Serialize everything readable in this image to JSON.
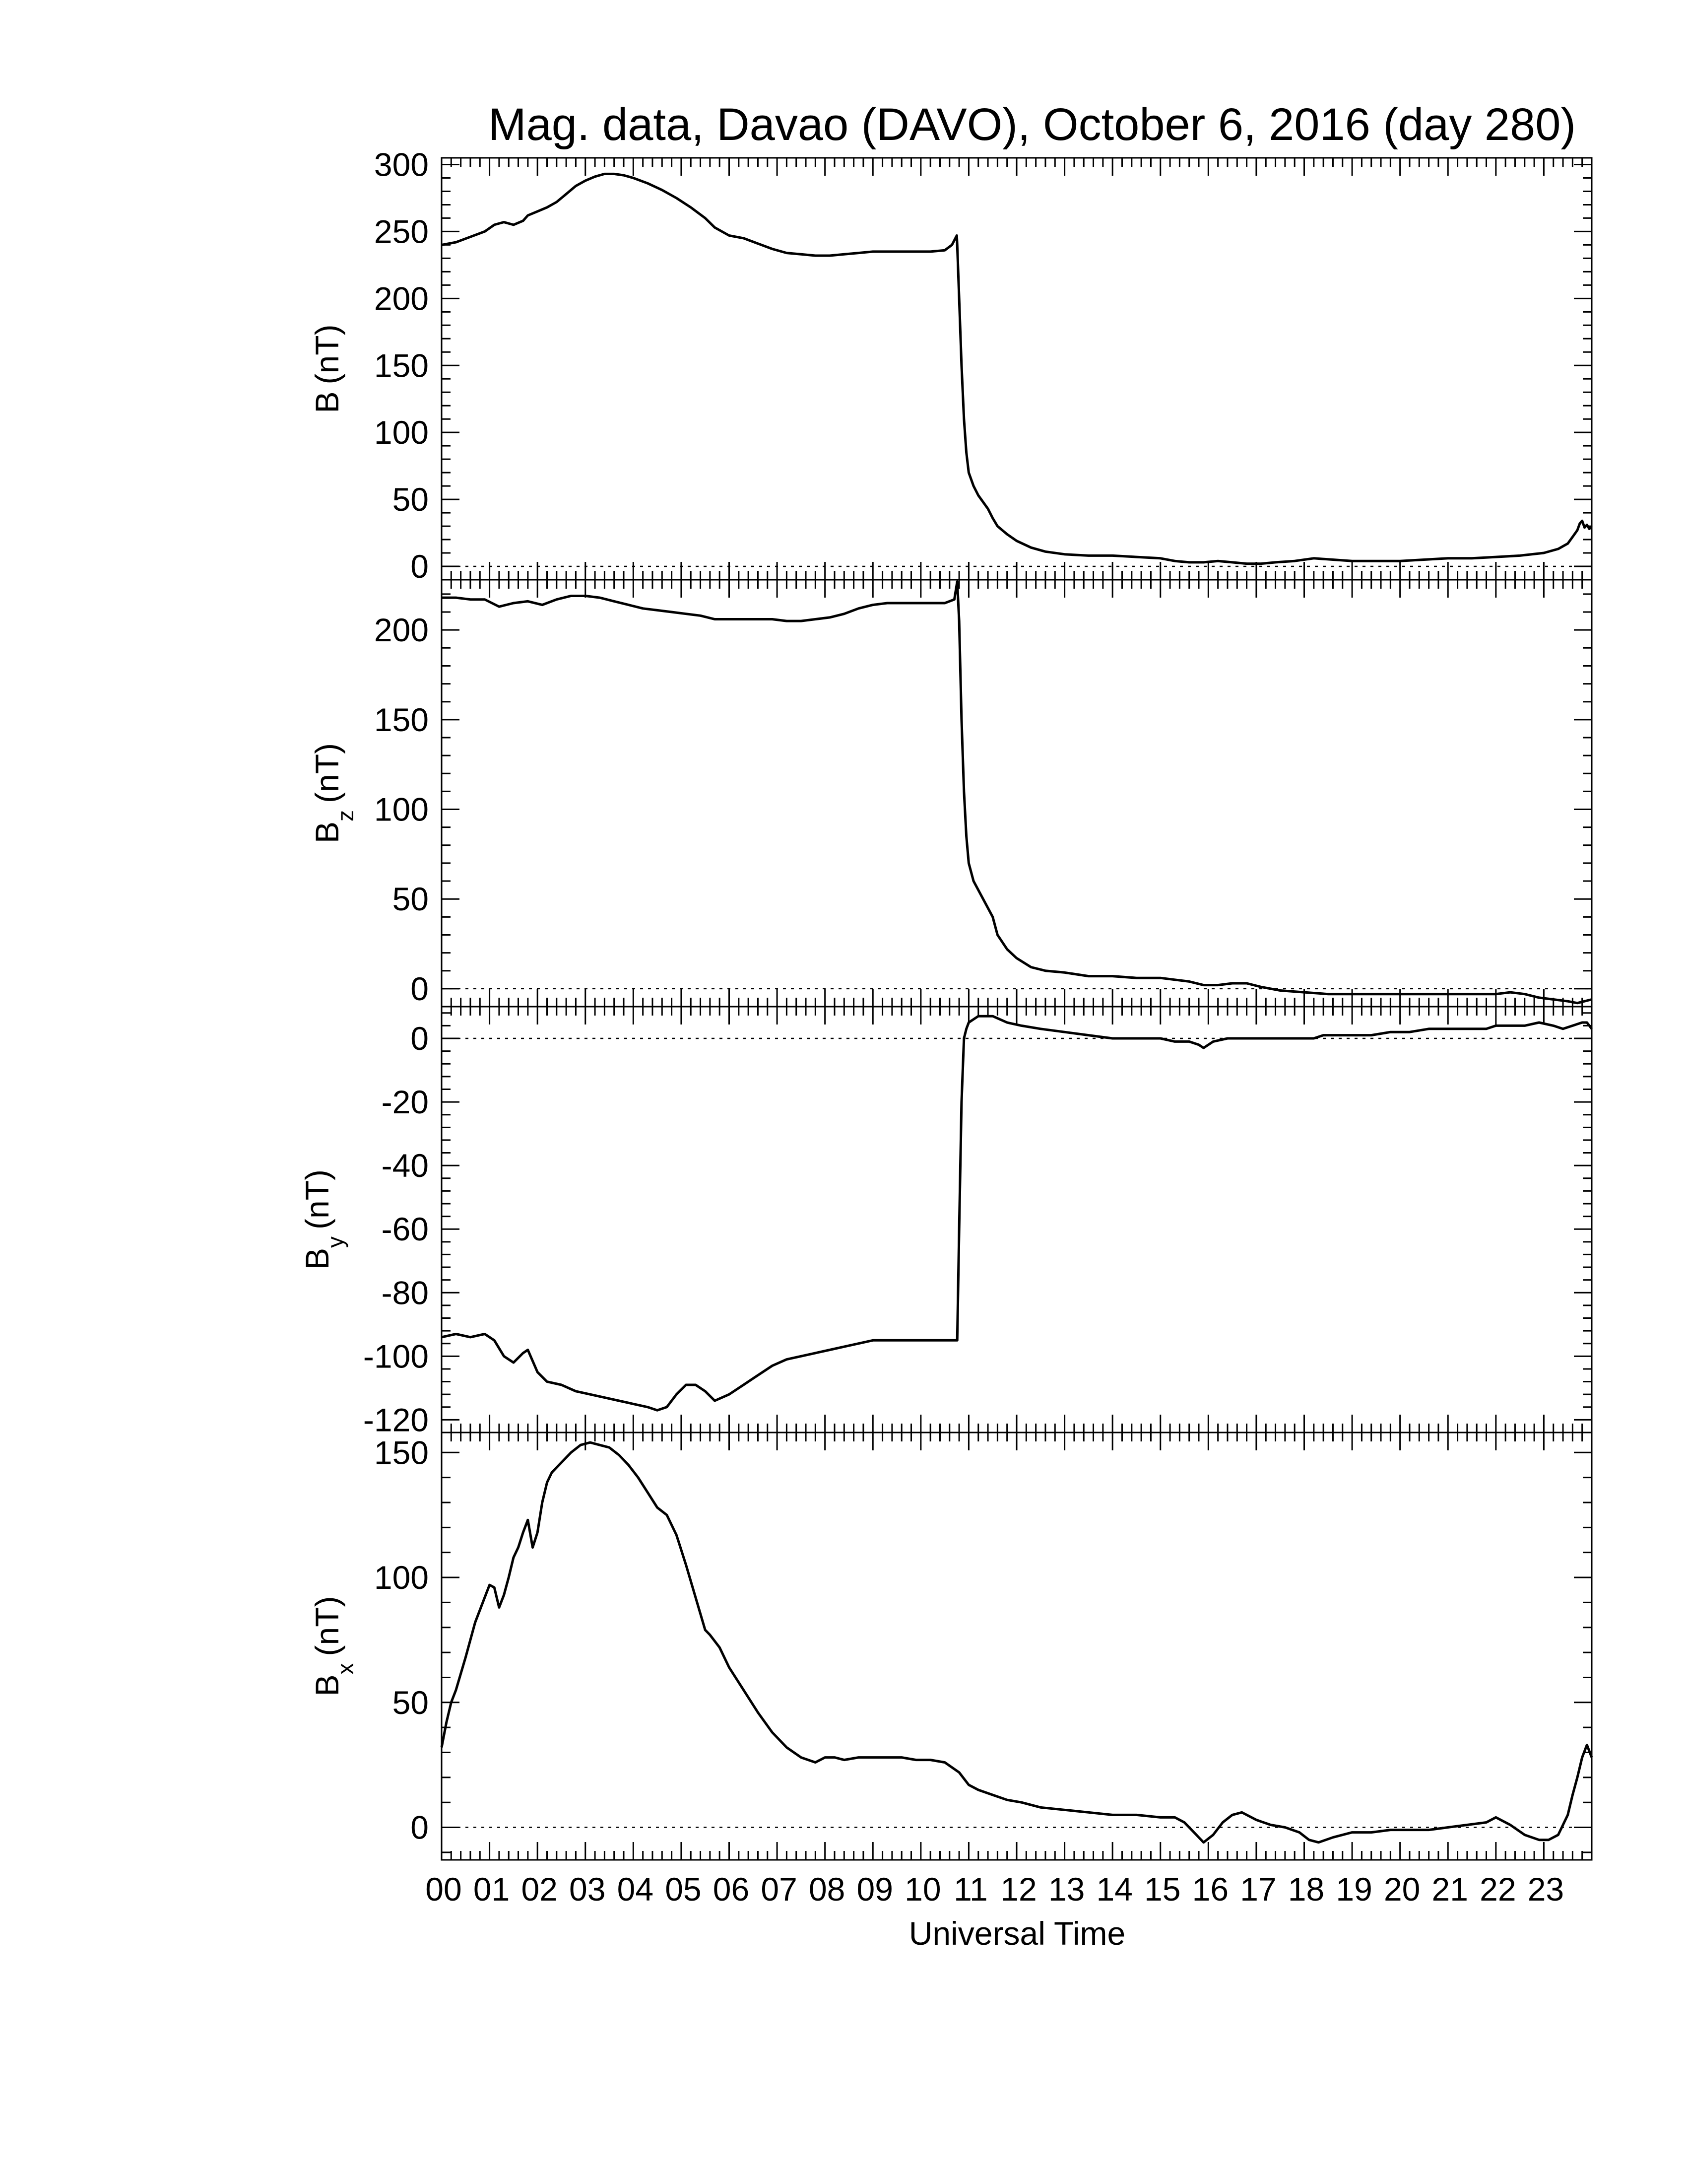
{
  "title": "Mag. data, Davao (DAVO), October 6, 2016 (day 280)",
  "xlabel": "Universal Time",
  "colors": {
    "line": "#000000",
    "background": "#ffffff",
    "zero_line": "#000000"
  },
  "chart_data": [
    {
      "type": "line",
      "id": "B",
      "ylabel_main": "B",
      "ylabel_sub": "",
      "ylabel_unit": "(nT)",
      "xlim": [
        0,
        24
      ],
      "ylim": [
        -10,
        305
      ],
      "yticks": [
        0,
        50,
        100,
        150,
        200,
        250,
        300
      ],
      "zero_line": true,
      "grid": false,
      "series": [
        {
          "x": [
            0,
            0.3,
            0.6,
            0.9,
            1.1,
            1.3,
            1.5,
            1.7,
            1.8,
            2.0,
            2.2,
            2.4,
            2.6,
            2.8,
            3.0,
            3.2,
            3.4,
            3.6,
            3.8,
            4.0,
            4.3,
            4.6,
            4.9,
            5.2,
            5.5,
            5.7,
            6.0,
            6.3,
            6.6,
            6.9,
            7.2,
            7.5,
            7.8,
            8.1,
            8.4,
            8.7,
            9.0,
            9.3,
            9.6,
            9.9,
            10.2,
            10.5,
            10.65,
            10.75,
            10.76,
            10.8,
            10.85,
            10.9,
            10.95,
            11.0,
            11.1,
            11.2,
            11.3,
            11.4,
            11.5,
            11.6,
            11.8,
            12.0,
            12.3,
            12.6,
            13.0,
            13.5,
            14.0,
            14.5,
            15.0,
            15.3,
            15.6,
            15.9,
            16.2,
            16.5,
            16.8,
            17.1,
            17.4,
            17.8,
            18.2,
            18.6,
            19.0,
            19.5,
            20.0,
            20.5,
            21.0,
            21.5,
            22.0,
            22.5,
            23.0,
            23.3,
            23.5,
            23.6,
            23.7,
            23.75,
            23.8,
            23.85,
            23.9,
            23.95,
            24.0
          ],
          "y": [
            240,
            242,
            246,
            250,
            255,
            257,
            255,
            258,
            262,
            265,
            268,
            272,
            278,
            284,
            288,
            291,
            293,
            293,
            292,
            290,
            286,
            281,
            275,
            268,
            260,
            253,
            247,
            245,
            241,
            237,
            234,
            233,
            232,
            232,
            233,
            234,
            235,
            235,
            235,
            235,
            235,
            236,
            240,
            247,
            240,
            200,
            150,
            110,
            85,
            70,
            60,
            53,
            48,
            43,
            36,
            30,
            24,
            19,
            14,
            11,
            9,
            8,
            8,
            7,
            6,
            4,
            3,
            3,
            4,
            3,
            2,
            2,
            3,
            4,
            6,
            5,
            4,
            4,
            4,
            5,
            6,
            6,
            7,
            8,
            10,
            13,
            17,
            22,
            27,
            32,
            34,
            29,
            31,
            28,
            30
          ]
        }
      ]
    },
    {
      "type": "line",
      "id": "Bz",
      "ylabel_main": "B",
      "ylabel_sub": "z",
      "ylabel_unit": "(nT)",
      "xlim": [
        0,
        24
      ],
      "ylim": [
        -10,
        228
      ],
      "yticks": [
        0,
        50,
        100,
        150,
        200
      ],
      "zero_line": true,
      "grid": false,
      "series": [
        {
          "x": [
            0,
            0.3,
            0.6,
            0.9,
            1.2,
            1.5,
            1.8,
            2.1,
            2.4,
            2.7,
            3.0,
            3.3,
            3.6,
            3.9,
            4.2,
            4.5,
            4.8,
            5.1,
            5.4,
            5.7,
            6.0,
            6.3,
            6.6,
            6.9,
            7.2,
            7.5,
            7.8,
            8.1,
            8.4,
            8.7,
            9.0,
            9.3,
            9.6,
            9.9,
            10.2,
            10.5,
            10.7,
            10.76,
            10.8,
            10.85,
            10.9,
            10.95,
            11.0,
            11.1,
            11.2,
            11.3,
            11.4,
            11.5,
            11.6,
            11.8,
            12.0,
            12.3,
            12.6,
            13.0,
            13.5,
            14.0,
            14.5,
            15.0,
            15.3,
            15.6,
            15.9,
            16.2,
            16.5,
            16.8,
            17.1,
            17.5,
            18.0,
            18.5,
            19.0,
            19.5,
            20.0,
            20.5,
            21.0,
            21.5,
            22.0,
            22.3,
            22.6,
            22.9,
            23.2,
            23.5,
            23.7,
            24.0
          ],
          "y": [
            218,
            218,
            217,
            217,
            213,
            215,
            216,
            214,
            217,
            219,
            219,
            218,
            216,
            214,
            212,
            211,
            210,
            209,
            208,
            206,
            206,
            206,
            206,
            206,
            205,
            205,
            206,
            207,
            209,
            212,
            214,
            215,
            215,
            215,
            215,
            215,
            217,
            227,
            205,
            150,
            110,
            85,
            70,
            60,
            55,
            50,
            45,
            40,
            30,
            22,
            17,
            12,
            10,
            9,
            7,
            7,
            6,
            6,
            5,
            4,
            2,
            2,
            3,
            3,
            1,
            -1,
            -2,
            -3,
            -3,
            -3,
            -3,
            -3,
            -3,
            -3,
            -3,
            -2,
            -3,
            -5,
            -6,
            -7,
            -8,
            -6
          ]
        }
      ]
    },
    {
      "type": "line",
      "id": "By",
      "ylabel_main": "B",
      "ylabel_sub": "y",
      "ylabel_unit": "(nT)",
      "xlim": [
        0,
        24
      ],
      "ylim": [
        -124,
        10
      ],
      "yticks": [
        0,
        -20,
        -40,
        -60,
        -80,
        -100,
        -120
      ],
      "zero_line": true,
      "grid": false,
      "series": [
        {
          "x": [
            0,
            0.3,
            0.6,
            0.9,
            1.1,
            1.3,
            1.5,
            1.7,
            1.8,
            2.0,
            2.2,
            2.5,
            2.8,
            3.1,
            3.4,
            3.7,
            4.0,
            4.3,
            4.5,
            4.7,
            4.9,
            5.1,
            5.3,
            5.5,
            5.7,
            6.0,
            6.3,
            6.6,
            6.9,
            7.2,
            7.5,
            7.8,
            8.1,
            8.4,
            8.7,
            9.0,
            9.3,
            9.6,
            9.9,
            10.2,
            10.5,
            10.75,
            10.76,
            10.8,
            10.85,
            10.9,
            10.95,
            11.0,
            11.1,
            11.2,
            11.3,
            11.5,
            11.8,
            12.1,
            12.5,
            13.0,
            13.5,
            14.0,
            14.5,
            15.0,
            15.3,
            15.6,
            15.8,
            15.9,
            16.1,
            16.4,
            16.7,
            17.0,
            17.4,
            17.8,
            18.0,
            18.2,
            18.4,
            18.7,
            19.0,
            19.4,
            19.8,
            20.2,
            20.6,
            21.0,
            21.4,
            21.8,
            22.0,
            22.3,
            22.6,
            22.9,
            23.2,
            23.4,
            23.6,
            23.8,
            23.9,
            24.0
          ],
          "y": [
            -94,
            -93,
            -94,
            -93,
            -95,
            -100,
            -102,
            -99,
            -98,
            -105,
            -108,
            -109,
            -111,
            -112,
            -113,
            -114,
            -115,
            -116,
            -117,
            -116,
            -112,
            -109,
            -109,
            -111,
            -114,
            -112,
            -109,
            -106,
            -103,
            -101,
            -100,
            -99,
            -98,
            -97,
            -96,
            -95,
            -95,
            -95,
            -95,
            -95,
            -95,
            -95,
            -95,
            -60,
            -20,
            0,
            3,
            5,
            6,
            7,
            7,
            7,
            5,
            4,
            3,
            2,
            1,
            0,
            0,
            0,
            -1,
            -1,
            -2,
            -3,
            -1,
            0,
            0,
            0,
            0,
            0,
            0,
            0,
            1,
            1,
            1,
            1,
            2,
            2,
            3,
            3,
            3,
            3,
            4,
            4,
            4,
            5,
            4,
            3,
            4,
            5,
            5,
            3
          ]
        }
      ]
    },
    {
      "type": "line",
      "id": "Bx",
      "ylabel_main": "B",
      "ylabel_sub": "x",
      "ylabel_unit": "(nT)",
      "xlim": [
        0,
        24
      ],
      "ylim": [
        -13,
        158
      ],
      "yticks": [
        0,
        50,
        100,
        150
      ],
      "zero_line": true,
      "grid": false,
      "series": [
        {
          "x": [
            0,
            0.1,
            0.2,
            0.3,
            0.5,
            0.7,
            0.9,
            1.0,
            1.1,
            1.2,
            1.3,
            1.4,
            1.5,
            1.6,
            1.7,
            1.8,
            1.9,
            2.0,
            2.1,
            2.2,
            2.3,
            2.5,
            2.7,
            2.9,
            3.1,
            3.3,
            3.5,
            3.7,
            3.9,
            4.1,
            4.3,
            4.5,
            4.7,
            4.9,
            5.1,
            5.3,
            5.5,
            5.6,
            5.8,
            6.0,
            6.3,
            6.6,
            6.9,
            7.2,
            7.5,
            7.8,
            8.0,
            8.2,
            8.4,
            8.7,
            9.0,
            9.3,
            9.6,
            9.9,
            10.2,
            10.5,
            10.8,
            11.0,
            11.2,
            11.5,
            11.8,
            12.1,
            12.5,
            13.0,
            13.5,
            14.0,
            14.5,
            15.0,
            15.3,
            15.5,
            15.7,
            15.9,
            16.1,
            16.3,
            16.5,
            16.7,
            17.0,
            17.3,
            17.6,
            17.9,
            18.1,
            18.3,
            18.6,
            19.0,
            19.4,
            19.8,
            20.2,
            20.6,
            21.0,
            21.4,
            21.8,
            22.0,
            22.3,
            22.6,
            22.9,
            23.1,
            23.3,
            23.5,
            23.6,
            23.7,
            23.8,
            23.9,
            24.0
          ],
          "y": [
            32,
            42,
            50,
            55,
            68,
            82,
            92,
            97,
            96,
            88,
            93,
            100,
            108,
            112,
            118,
            123,
            112,
            118,
            130,
            138,
            142,
            146,
            150,
            153,
            154,
            153,
            152,
            149,
            145,
            140,
            134,
            128,
            125,
            117,
            105,
            92,
            79,
            77,
            72,
            64,
            55,
            46,
            38,
            32,
            28,
            26,
            28,
            28,
            27,
            28,
            28,
            28,
            28,
            27,
            27,
            26,
            22,
            17,
            15,
            13,
            11,
            10,
            8,
            7,
            6,
            5,
            5,
            4,
            4,
            2,
            -2,
            -6,
            -3,
            2,
            5,
            6,
            3,
            1,
            0,
            -2,
            -5,
            -6,
            -4,
            -2,
            -2,
            -1,
            -1,
            -1,
            0,
            1,
            2,
            4,
            1,
            -3,
            -5,
            -5,
            -3,
            5,
            13,
            20,
            28,
            33,
            28
          ]
        }
      ]
    }
  ]
}
